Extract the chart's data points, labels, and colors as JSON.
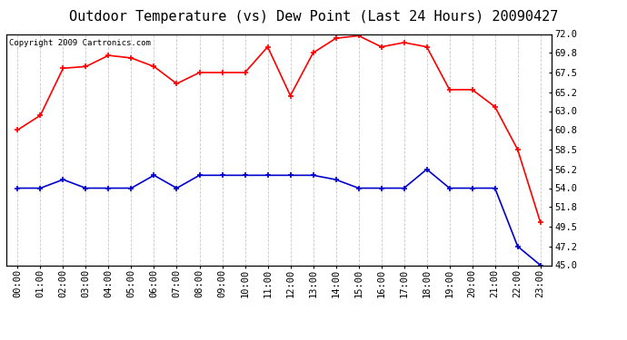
{
  "title": "Outdoor Temperature (vs) Dew Point (Last 24 Hours) 20090427",
  "copyright": "Copyright 2009 Cartronics.com",
  "hours": [
    "00:00",
    "01:00",
    "02:00",
    "03:00",
    "04:00",
    "05:00",
    "06:00",
    "07:00",
    "08:00",
    "09:00",
    "10:00",
    "11:00",
    "12:00",
    "13:00",
    "14:00",
    "15:00",
    "16:00",
    "17:00",
    "18:00",
    "19:00",
    "20:00",
    "21:00",
    "22:00",
    "23:00"
  ],
  "temp": [
    60.8,
    62.5,
    68.0,
    68.2,
    69.5,
    69.2,
    68.2,
    66.2,
    67.5,
    67.5,
    67.5,
    70.5,
    64.8,
    69.8,
    71.5,
    71.8,
    70.5,
    71.0,
    70.5,
    65.5,
    65.5,
    63.5,
    58.5,
    50.0
  ],
  "dew": [
    54.0,
    54.0,
    55.0,
    54.0,
    54.0,
    54.0,
    55.5,
    54.0,
    55.5,
    55.5,
    55.5,
    55.5,
    55.5,
    55.5,
    55.0,
    54.0,
    54.0,
    54.0,
    56.2,
    54.0,
    54.0,
    54.0,
    47.2,
    45.0
  ],
  "temp_color": "#FF0000",
  "dew_color": "#0000CC",
  "bg_color": "#FFFFFF",
  "grid_color": "#C8C8C8",
  "ylim": [
    45.0,
    72.0
  ],
  "yticks": [
    45.0,
    47.2,
    49.5,
    51.8,
    54.0,
    56.2,
    58.5,
    60.8,
    63.0,
    65.2,
    67.5,
    69.8,
    72.0
  ],
  "title_fontsize": 11,
  "copyright_fontsize": 6.5,
  "tick_fontsize": 7.5,
  "marker_size": 4,
  "linewidth": 1.2
}
